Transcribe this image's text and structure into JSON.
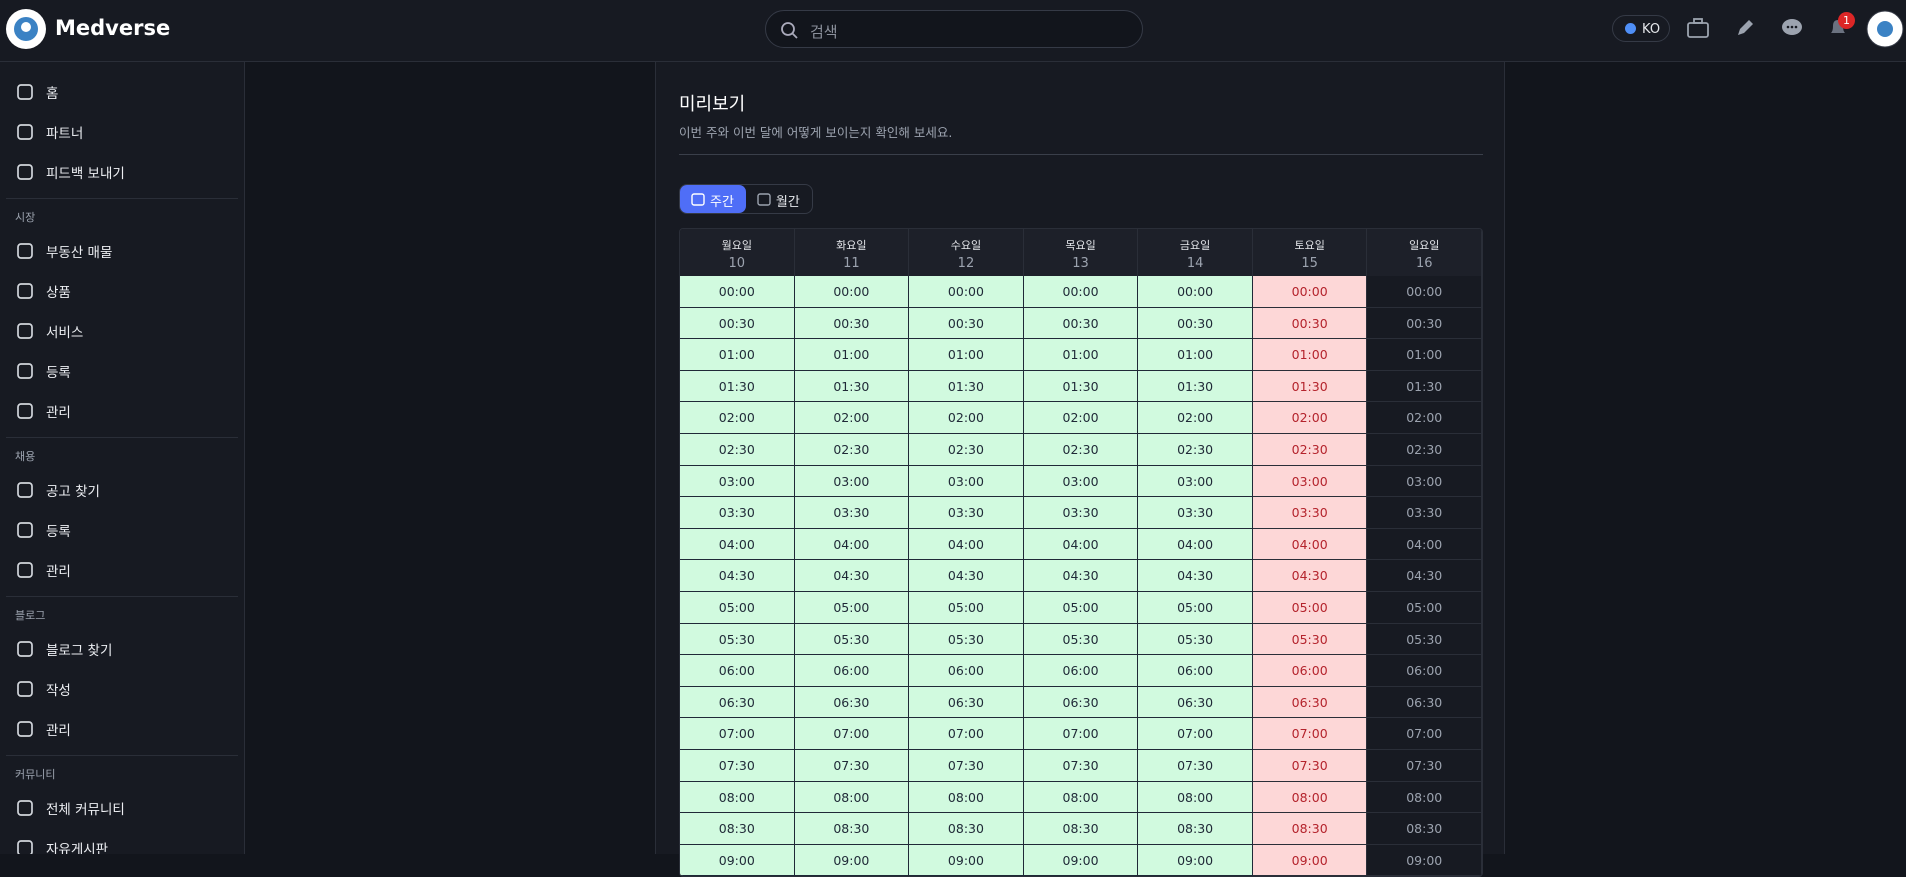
{
  "header": {
    "brand": "Medverse",
    "search_placeholder": "검색",
    "language": "KO",
    "notification_count": "1"
  },
  "sidebar": {
    "main_nav": [
      "홈",
      "파트너",
      "피드백 보내기"
    ],
    "sections": [
      {
        "title": "시장",
        "items": [
          "부동산 매물",
          "상품",
          "서비스",
          "등록",
          "관리"
        ]
      },
      {
        "title": "채용",
        "items": [
          "공고 찾기",
          "등록",
          "관리"
        ]
      },
      {
        "title": "블로그",
        "items": [
          "블로그 찾기",
          "작성",
          "관리"
        ]
      },
      {
        "title": "커뮤니티",
        "items": [
          "전체 커뮤니티",
          "자유게시판"
        ]
      }
    ]
  },
  "preview": {
    "title": "미리보기",
    "subtitle": "이번 주와 이번 달에 어떻게 보이는지 확인해 보세요.",
    "tabs": [
      "주간",
      "월간"
    ],
    "days": [
      {
        "name": "월요일",
        "date": "10"
      },
      {
        "name": "화요일",
        "date": "11"
      },
      {
        "name": "수요일",
        "date": "12"
      },
      {
        "name": "목요일",
        "date": "13"
      },
      {
        "name": "금요일",
        "date": "14"
      },
      {
        "name": "토요일",
        "date": "15"
      },
      {
        "name": "일요일",
        "date": "16"
      }
    ],
    "times": [
      "00:00",
      "00:30",
      "01:00",
      "01:30",
      "02:00",
      "02:30",
      "03:00",
      "03:30",
      "04:00",
      "04:30",
      "05:00",
      "05:30",
      "06:00",
      "06:30",
      "07:00",
      "07:30",
      "08:00",
      "08:30",
      "09:00"
    ]
  }
}
